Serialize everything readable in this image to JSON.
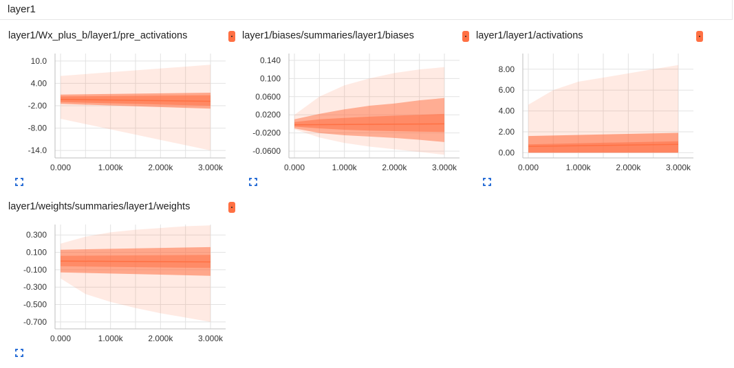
{
  "section": {
    "title": "layer1"
  },
  "colors": {
    "accent": "#ff7043",
    "grid": "#e2e2e2",
    "axis": "#bdbdbd",
    "expand": "#2b6fd6"
  },
  "cards": [
    {
      "id": "pre_activations",
      "title": "layer1/Wx_plus_b/layer1/pre_activations",
      "chart_data": {
        "type": "area",
        "x_ticks": [
          "0.000",
          "1.000k",
          "2.000k",
          "3.000k"
        ],
        "y_ticks": [
          "10.0",
          "4.00",
          "-2.00",
          "-8.00",
          "-14.0"
        ],
        "xlim": [
          0,
          3000
        ],
        "ylim": [
          -16,
          12
        ],
        "y_tick_values": [
          10,
          4,
          -2,
          -8,
          -14
        ],
        "grid": true,
        "bands": [
          {
            "x": [
              0,
              3000
            ],
            "low": [
              -5.5,
              -14
            ],
            "high": [
              6,
              9
            ],
            "opacity": 0.15
          },
          {
            "x": [
              0,
              3000
            ],
            "low": [
              -1.5,
              -2.8
            ],
            "high": [
              1.0,
              1.5
            ],
            "opacity": 0.55
          },
          {
            "x": [
              0,
              3000
            ],
            "low": [
              -1.0,
              -2.0
            ],
            "high": [
              0.5,
              0.8
            ],
            "opacity": 0.55
          }
        ],
        "median": {
          "x": [
            0,
            3000
          ],
          "y": [
            -0.3,
            -0.8
          ]
        }
      }
    },
    {
      "id": "biases",
      "title": "layer1/biases/summaries/layer1/biases",
      "chart_data": {
        "type": "area",
        "x_ticks": [
          "0.000",
          "1.000k",
          "2.000k",
          "3.000k"
        ],
        "y_ticks": [
          "0.140",
          "0.100",
          "0.0600",
          "0.0200",
          "-0.0200",
          "-0.0600"
        ],
        "xlim": [
          0,
          3000
        ],
        "ylim": [
          -0.075,
          0.155
        ],
        "y_tick_values": [
          0.14,
          0.1,
          0.06,
          0.02,
          -0.02,
          -0.06
        ],
        "grid": true,
        "bands": [
          {
            "x": [
              0,
              500,
              1000,
              1500,
              2000,
              2500,
              3000
            ],
            "low": [
              -0.012,
              -0.03,
              -0.042,
              -0.05,
              -0.056,
              -0.062,
              -0.068
            ],
            "high": [
              0.02,
              0.06,
              0.085,
              0.1,
              0.112,
              0.12,
              0.125
            ],
            "opacity": 0.15
          },
          {
            "x": [
              0,
              500,
              1000,
              1500,
              2000,
              2500,
              3000
            ],
            "low": [
              -0.01,
              -0.02,
              -0.025,
              -0.028,
              -0.031,
              -0.035,
              -0.04
            ],
            "high": [
              0.01,
              0.022,
              0.032,
              0.04,
              0.045,
              0.052,
              0.057
            ],
            "opacity": 0.5
          },
          {
            "x": [
              0,
              500,
              1000,
              1500,
              2000,
              2500,
              3000
            ],
            "low": [
              -0.006,
              -0.01,
              -0.013,
              -0.015,
              -0.016,
              -0.017,
              -0.018
            ],
            "high": [
              0.004,
              0.01,
              0.013,
              0.016,
              0.018,
              0.02,
              0.022
            ],
            "opacity": 0.55
          }
        ],
        "median": {
          "x": [
            0,
            3000
          ],
          "y": [
            -0.002,
            0.0
          ]
        }
      }
    },
    {
      "id": "activations",
      "title": "layer1/layer1/activations",
      "chart_data": {
        "type": "area",
        "x_ticks": [
          "0.000",
          "1.000k",
          "2.000k",
          "3.000k"
        ],
        "y_ticks": [
          "8.00",
          "6.00",
          "4.00",
          "2.00",
          "0.00"
        ],
        "xlim": [
          0,
          3000
        ],
        "ylim": [
          -0.5,
          9.5
        ],
        "y_tick_values": [
          8,
          6,
          4,
          2,
          0
        ],
        "grid": true,
        "bands": [
          {
            "x": [
              0,
              500,
              1000,
              1500,
              2000,
              2500,
              3000
            ],
            "low": [
              0,
              0,
              0,
              0,
              0,
              0,
              0
            ],
            "high": [
              4.6,
              6.0,
              6.8,
              7.2,
              7.6,
              8.0,
              8.4
            ],
            "opacity": 0.15
          },
          {
            "x": [
              0,
              3000
            ],
            "low": [
              0,
              0
            ],
            "high": [
              1.6,
              1.9
            ],
            "opacity": 0.6
          },
          {
            "x": [
              0,
              3000
            ],
            "low": [
              0,
              0
            ],
            "high": [
              0.8,
              1.1
            ],
            "opacity": 0.55
          }
        ],
        "median": {
          "x": [
            0,
            3000
          ],
          "y": [
            0.6,
            0.8
          ]
        }
      }
    },
    {
      "id": "weights",
      "title": "layer1/weights/summaries/layer1/weights",
      "chart_data": {
        "type": "area",
        "x_ticks": [
          "0.000",
          "1.000k",
          "2.000k",
          "3.000k"
        ],
        "y_ticks": [
          "0.300",
          "0.100",
          "-0.100",
          "-0.300",
          "-0.500",
          "-0.700"
        ],
        "xlim": [
          0,
          3000
        ],
        "ylim": [
          -0.78,
          0.42
        ],
        "y_tick_values": [
          0.3,
          0.1,
          -0.1,
          -0.3,
          -0.5,
          -0.7
        ],
        "grid": true,
        "bands": [
          {
            "x": [
              0,
              500,
              1000,
              1500,
              2000,
              2500,
              3000
            ],
            "low": [
              -0.2,
              -0.38,
              -0.47,
              -0.54,
              -0.6,
              -0.65,
              -0.7
            ],
            "high": [
              0.2,
              0.28,
              0.33,
              0.36,
              0.38,
              0.4,
              0.41
            ],
            "opacity": 0.15
          },
          {
            "x": [
              0,
              3000
            ],
            "low": [
              -0.13,
              -0.17
            ],
            "high": [
              0.13,
              0.16
            ],
            "opacity": 0.55
          },
          {
            "x": [
              0,
              3000
            ],
            "low": [
              -0.06,
              -0.08
            ],
            "high": [
              0.06,
              0.07
            ],
            "opacity": 0.5
          }
        ],
        "median": {
          "x": [
            0,
            3000
          ],
          "y": [
            0.0,
            -0.01
          ]
        }
      }
    }
  ]
}
